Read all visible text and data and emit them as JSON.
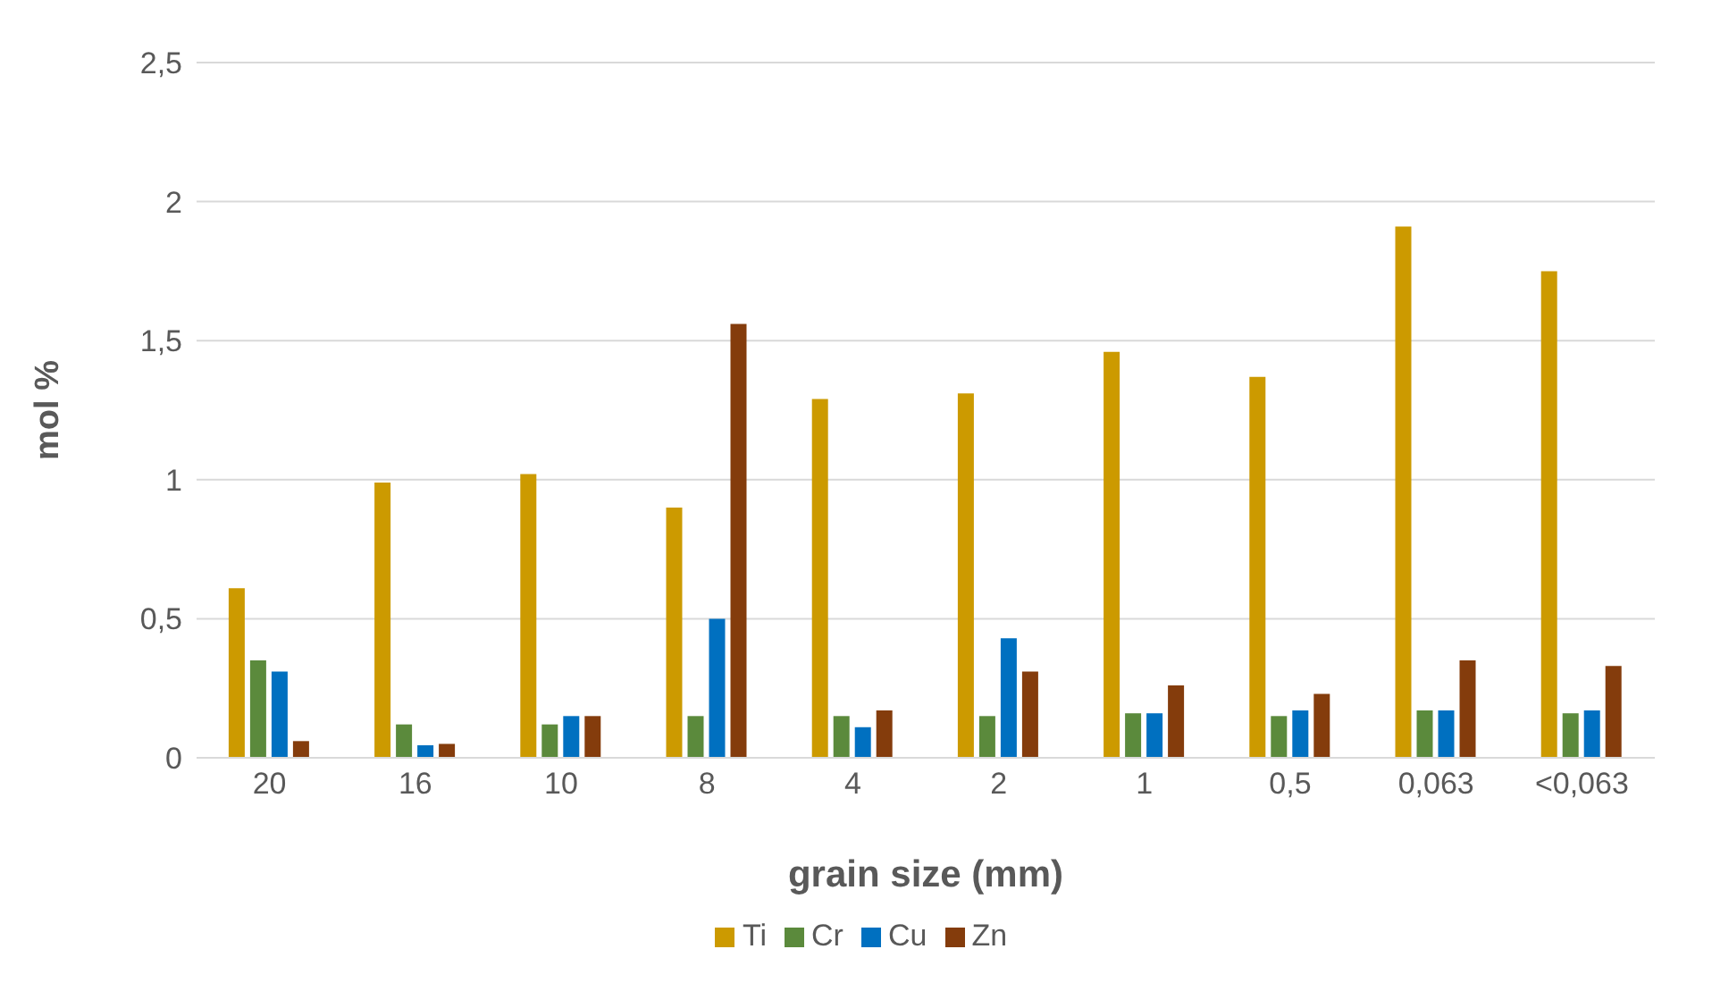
{
  "chart_data": {
    "type": "bar",
    "xlabel": "grain size (mm)",
    "ylabel": "mol %",
    "categories": [
      "20",
      "16",
      "10",
      "8",
      "4",
      "2",
      "1",
      "0,5",
      "0,063",
      "<0,063"
    ],
    "series": [
      {
        "name": "Ti",
        "color": "#cc9a00",
        "values": [
          0.61,
          0.99,
          1.02,
          0.9,
          1.29,
          1.31,
          1.46,
          1.37,
          1.91,
          1.75
        ]
      },
      {
        "name": "Cr",
        "color": "#5b8a3c",
        "values": [
          0.35,
          0.12,
          0.12,
          0.15,
          0.15,
          0.15,
          0.16,
          0.15,
          0.17,
          0.16
        ]
      },
      {
        "name": "Cu",
        "color": "#0070c0",
        "values": [
          0.31,
          0.045,
          0.15,
          0.5,
          0.11,
          0.43,
          0.16,
          0.17,
          0.17,
          0.17
        ]
      },
      {
        "name": "Zn",
        "color": "#843c0c",
        "values": [
          0.06,
          0.05,
          0.15,
          1.56,
          0.17,
          0.31,
          0.26,
          0.23,
          0.35,
          0.33
        ]
      }
    ],
    "ylim": [
      0,
      2.5
    ],
    "yticks": [
      0,
      {
        "value": 0.5,
        "label": "0,5"
      },
      1,
      {
        "value": 1.5,
        "label": "1,5"
      },
      2,
      {
        "value": 2.5,
        "label": "2,5"
      }
    ],
    "grid": "y",
    "legend": "bottom"
  }
}
